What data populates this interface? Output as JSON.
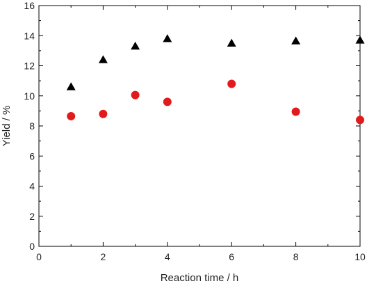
{
  "chart_data": {
    "type": "scatter",
    "title": "",
    "xlabel": "Reaction time / h",
    "ylabel": "Yield / %",
    "xlim": [
      0,
      10
    ],
    "ylim": [
      0,
      16
    ],
    "x_ticks": [
      "0",
      "2",
      "4",
      "6",
      "8",
      "10"
    ],
    "y_ticks": [
      "0",
      "2",
      "4",
      "6",
      "8",
      "10",
      "12",
      "14",
      "16"
    ],
    "grid": false,
    "legend": "none",
    "series": [
      {
        "marker": "triangle",
        "color": "#000000",
        "x": [
          1,
          2,
          3,
          4,
          6,
          8,
          10
        ],
        "y": [
          10.6,
          12.4,
          13.3,
          13.8,
          13.5,
          13.65,
          13.7
        ]
      },
      {
        "marker": "circle",
        "color": "#e31a1c",
        "x": [
          1,
          2,
          3,
          4,
          6,
          8,
          10
        ],
        "y": [
          8.65,
          8.8,
          10.05,
          9.6,
          10.8,
          8.95,
          8.4
        ]
      }
    ]
  }
}
